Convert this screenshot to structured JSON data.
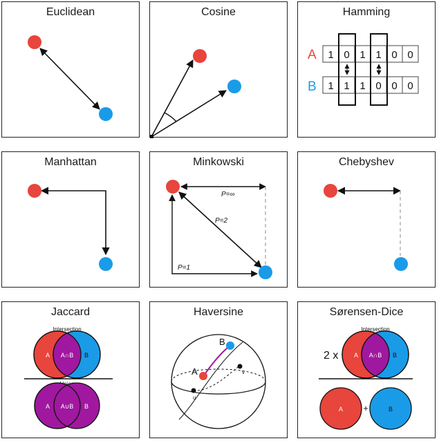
{
  "colors": {
    "red": "#e8453c",
    "blue": "#1a9be8",
    "purple": "#a0189f",
    "line": "#111111",
    "dashed": "#aaaaaa"
  },
  "panels": {
    "euclidean": {
      "title": "Euclidean"
    },
    "cosine": {
      "title": "Cosine"
    },
    "hamming": {
      "title": "Hamming",
      "label_a": "A",
      "label_b": "B",
      "row_a": [
        "1",
        "0",
        "1",
        "1",
        "0",
        "0"
      ],
      "row_b": [
        "1",
        "1",
        "1",
        "0",
        "0",
        "0"
      ]
    },
    "manhattan": {
      "title": "Manhattan"
    },
    "minkowski": {
      "title": "Minkowski",
      "p_inf": "P=∞",
      "p_2": "P=2",
      "p_1": "P=1"
    },
    "chebyshev": {
      "title": "Chebyshev"
    },
    "jaccard": {
      "title": "Jaccard",
      "intersection_label": "Intersection",
      "union_label": "Union",
      "a": "A",
      "b": "B",
      "a_and_b": "A∩B",
      "a_or_b": "A∪B"
    },
    "haversine": {
      "title": "Haversine",
      "a": "A",
      "b": "B",
      "u": "u",
      "v": "v"
    },
    "sorensen": {
      "title": "Sørensen-Dice",
      "intersection_label": "Intersection",
      "factor": "2 x",
      "a": "A",
      "b": "B",
      "a_and_b": "A∩B",
      "plus": "+"
    }
  }
}
